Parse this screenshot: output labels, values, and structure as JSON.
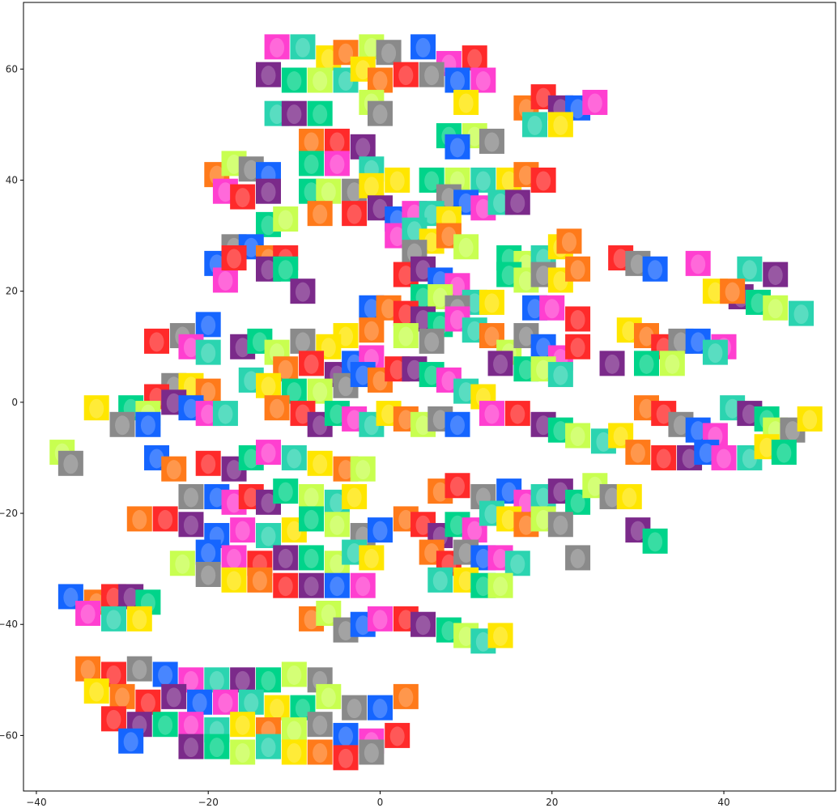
{
  "chart_data": {
    "type": "scatter",
    "title": "",
    "xlabel": "",
    "ylabel": "",
    "xlim": [
      -41.5,
      53
    ],
    "ylim": [
      -70,
      72
    ],
    "grid": false,
    "legend": "none",
    "marker": "face-thumbnail-image",
    "x_ticks": [
      -40,
      -20,
      0,
      20,
      40
    ],
    "y_ticks": [
      -60,
      -40,
      -20,
      0,
      20,
      40,
      60
    ],
    "tint_palette": [
      "#ff3fd0",
      "#ff7a1a",
      "#00d48a",
      "#1565ff",
      "#ffe600",
      "#7b2a8a",
      "#8a8a8a",
      "#2bd4b0",
      "#ff2a2a",
      "#c8ff50"
    ],
    "points": [
      [
        -12,
        64
      ],
      [
        -9,
        64
      ],
      [
        -6,
        62
      ],
      [
        -4,
        63
      ],
      [
        -1,
        64
      ],
      [
        1,
        63
      ],
      [
        5,
        64
      ],
      [
        8,
        61
      ],
      [
        11,
        62
      ],
      [
        -13,
        59
      ],
      [
        -10,
        58
      ],
      [
        -7,
        58
      ],
      [
        -4,
        58
      ],
      [
        -2,
        60
      ],
      [
        0,
        58
      ],
      [
        3,
        59
      ],
      [
        6,
        59
      ],
      [
        9,
        58
      ],
      [
        12,
        58
      ],
      [
        -12,
        52
      ],
      [
        -10,
        52
      ],
      [
        -7,
        52
      ],
      [
        -1,
        54
      ],
      [
        0,
        52
      ],
      [
        10,
        54
      ],
      [
        17,
        53
      ],
      [
        19,
        55
      ],
      [
        21,
        53
      ],
      [
        23,
        53
      ],
      [
        25,
        54
      ],
      [
        18,
        50
      ],
      [
        21,
        50
      ],
      [
        8,
        48
      ],
      [
        11,
        48
      ],
      [
        13,
        47
      ],
      [
        9,
        46
      ],
      [
        -8,
        47
      ],
      [
        -5,
        47
      ],
      [
        -2,
        46
      ],
      [
        -8,
        43
      ],
      [
        -5,
        43
      ],
      [
        -1,
        42
      ],
      [
        2,
        40
      ],
      [
        -19,
        41
      ],
      [
        -17,
        43
      ],
      [
        -15,
        42
      ],
      [
        -13,
        41
      ],
      [
        -18,
        38
      ],
      [
        -16,
        37
      ],
      [
        -13,
        38
      ],
      [
        6,
        40
      ],
      [
        9,
        40
      ],
      [
        12,
        40
      ],
      [
        15,
        40
      ],
      [
        17,
        41
      ],
      [
        19,
        40
      ],
      [
        8,
        37
      ],
      [
        10,
        36
      ],
      [
        12,
        35
      ],
      [
        14,
        36
      ],
      [
        16,
        36
      ],
      [
        -8,
        38
      ],
      [
        -6,
        38
      ],
      [
        -3,
        38
      ],
      [
        -1,
        39
      ],
      [
        -7,
        34
      ],
      [
        -3,
        34
      ],
      [
        0,
        35
      ],
      [
        2,
        33
      ],
      [
        4,
        34
      ],
      [
        6,
        34
      ],
      [
        8,
        33
      ],
      [
        -13,
        32
      ],
      [
        -11,
        33
      ],
      [
        -17,
        28
      ],
      [
        -15,
        28
      ],
      [
        -13,
        26
      ],
      [
        -11,
        26
      ],
      [
        -13,
        24
      ],
      [
        -11,
        24
      ],
      [
        2,
        30
      ],
      [
        4,
        31
      ],
      [
        6,
        29
      ],
      [
        8,
        30
      ],
      [
        10,
        28
      ],
      [
        4,
        27
      ],
      [
        -19,
        25
      ],
      [
        -18,
        22
      ],
      [
        -17,
        26
      ],
      [
        -9,
        20
      ],
      [
        15,
        26
      ],
      [
        17,
        25
      ],
      [
        19,
        26
      ],
      [
        21,
        28
      ],
      [
        22,
        29
      ],
      [
        28,
        26
      ],
      [
        30,
        25
      ],
      [
        32,
        24
      ],
      [
        37,
        25
      ],
      [
        43,
        24
      ],
      [
        46,
        23
      ],
      [
        15,
        23
      ],
      [
        17,
        22
      ],
      [
        19,
        23
      ],
      [
        21,
        22
      ],
      [
        23,
        24
      ],
      [
        3,
        23
      ],
      [
        5,
        24
      ],
      [
        7,
        22
      ],
      [
        9,
        21
      ],
      [
        11,
        18
      ],
      [
        13,
        18
      ],
      [
        5,
        19
      ],
      [
        7,
        19
      ],
      [
        9,
        17
      ],
      [
        -1,
        17
      ],
      [
        1,
        17
      ],
      [
        3,
        16
      ],
      [
        5,
        15
      ],
      [
        7,
        14
      ],
      [
        9,
        15
      ],
      [
        11,
        13
      ],
      [
        -4,
        12
      ],
      [
        -1,
        13
      ],
      [
        3,
        12
      ],
      [
        6,
        11
      ],
      [
        18,
        17
      ],
      [
        20,
        17
      ],
      [
        23,
        15
      ],
      [
        42,
        19
      ],
      [
        44,
        18
      ],
      [
        46,
        17
      ],
      [
        49,
        16
      ],
      [
        39,
        20
      ],
      [
        41,
        20
      ],
      [
        -26,
        11
      ],
      [
        -23,
        12
      ],
      [
        -20,
        14
      ],
      [
        -22,
        10
      ],
      [
        -20,
        9
      ],
      [
        -16,
        10
      ],
      [
        -14,
        11
      ],
      [
        -12,
        9
      ],
      [
        -9,
        11
      ],
      [
        -6,
        10
      ],
      [
        -11,
        6
      ],
      [
        -8,
        7
      ],
      [
        -5,
        5
      ],
      [
        -3,
        7
      ],
      [
        -1,
        8
      ],
      [
        -15,
        4
      ],
      [
        -13,
        3
      ],
      [
        -10,
        2
      ],
      [
        -7,
        2
      ],
      [
        -4,
        3
      ],
      [
        -2,
        5
      ],
      [
        0,
        4
      ],
      [
        2,
        6
      ],
      [
        4,
        6
      ],
      [
        6,
        5
      ],
      [
        8,
        4
      ],
      [
        10,
        2
      ],
      [
        12,
        1
      ],
      [
        13,
        12
      ],
      [
        15,
        9
      ],
      [
        17,
        12
      ],
      [
        19,
        10
      ],
      [
        21,
        8
      ],
      [
        23,
        10
      ],
      [
        14,
        7
      ],
      [
        17,
        6
      ],
      [
        19,
        6
      ],
      [
        21,
        5
      ],
      [
        29,
        13
      ],
      [
        31,
        12
      ],
      [
        33,
        10
      ],
      [
        35,
        11
      ],
      [
        37,
        11
      ],
      [
        40,
        10
      ],
      [
        39,
        9
      ],
      [
        27,
        7
      ],
      [
        31,
        7
      ],
      [
        34,
        7
      ],
      [
        -24,
        3
      ],
      [
        -22,
        3
      ],
      [
        -20,
        2
      ],
      [
        -26,
        1
      ],
      [
        -24,
        0
      ],
      [
        -22,
        -1
      ],
      [
        -20,
        -2
      ],
      [
        -18,
        -2
      ],
      [
        -33,
        -1
      ],
      [
        -29,
        -1
      ],
      [
        -27,
        -2
      ],
      [
        -30,
        -4
      ],
      [
        -27,
        -4
      ],
      [
        -12,
        -1
      ],
      [
        -9,
        -2
      ],
      [
        -7,
        -4
      ],
      [
        -5,
        -2
      ],
      [
        -3,
        -3
      ],
      [
        -1,
        -4
      ],
      [
        1,
        -2
      ],
      [
        3,
        -3
      ],
      [
        5,
        -4
      ],
      [
        7,
        -3
      ],
      [
        9,
        -4
      ],
      [
        13,
        -2
      ],
      [
        16,
        -2
      ],
      [
        19,
        -4
      ],
      [
        21,
        -5
      ],
      [
        23,
        -6
      ],
      [
        26,
        -7
      ],
      [
        28,
        -6
      ],
      [
        31,
        -1
      ],
      [
        33,
        -2
      ],
      [
        35,
        -4
      ],
      [
        37,
        -5
      ],
      [
        39,
        -6
      ],
      [
        41,
        -1
      ],
      [
        43,
        -2
      ],
      [
        45,
        -3
      ],
      [
        46,
        -5
      ],
      [
        48,
        -5
      ],
      [
        50,
        -3
      ],
      [
        30,
        -9
      ],
      [
        33,
        -10
      ],
      [
        36,
        -10
      ],
      [
        38,
        -9
      ],
      [
        40,
        -10
      ],
      [
        43,
        -10
      ],
      [
        45,
        -8
      ],
      [
        47,
        -9
      ],
      [
        -37,
        -9
      ],
      [
        -36,
        -11
      ],
      [
        -26,
        -10
      ],
      [
        -24,
        -12
      ],
      [
        -20,
        -11
      ],
      [
        -17,
        -12
      ],
      [
        -15,
        -10
      ],
      [
        -13,
        -9
      ],
      [
        -10,
        -10
      ],
      [
        -7,
        -11
      ],
      [
        -4,
        -12
      ],
      [
        -2,
        -12
      ],
      [
        -22,
        -17
      ],
      [
        -19,
        -17
      ],
      [
        -17,
        -18
      ],
      [
        -15,
        -17
      ],
      [
        -13,
        -18
      ],
      [
        -11,
        -16
      ],
      [
        -8,
        -17
      ],
      [
        -5,
        -18
      ],
      [
        -3,
        -17
      ],
      [
        7,
        -16
      ],
      [
        9,
        -15
      ],
      [
        12,
        -17
      ],
      [
        15,
        -16
      ],
      [
        17,
        -18
      ],
      [
        19,
        -17
      ],
      [
        21,
        -16
      ],
      [
        23,
        -18
      ],
      [
        25,
        -15
      ],
      [
        27,
        -17
      ],
      [
        29,
        -17
      ],
      [
        -28,
        -21
      ],
      [
        -25,
        -21
      ],
      [
        -22,
        -22
      ],
      [
        -19,
        -24
      ],
      [
        -16,
        -23
      ],
      [
        -13,
        -24
      ],
      [
        -10,
        -23
      ],
      [
        -8,
        -21
      ],
      [
        -5,
        -22
      ],
      [
        -2,
        -24
      ],
      [
        0,
        -23
      ],
      [
        3,
        -21
      ],
      [
        5,
        -22
      ],
      [
        7,
        -24
      ],
      [
        9,
        -22
      ],
      [
        11,
        -23
      ],
      [
        13,
        -20
      ],
      [
        15,
        -21
      ],
      [
        17,
        -22
      ],
      [
        19,
        -21
      ],
      [
        21,
        -22
      ],
      [
        -20,
        -27
      ],
      [
        -17,
        -28
      ],
      [
        -14,
        -29
      ],
      [
        -11,
        -28
      ],
      [
        -8,
        -28
      ],
      [
        -5,
        -29
      ],
      [
        -3,
        -27
      ],
      [
        -1,
        -28
      ],
      [
        6,
        -27
      ],
      [
        8,
        -29
      ],
      [
        10,
        -27
      ],
      [
        12,
        -28
      ],
      [
        14,
        -28
      ],
      [
        16,
        -29
      ],
      [
        30,
        -23
      ],
      [
        32,
        -25
      ],
      [
        -23,
        -29
      ],
      [
        -20,
        -31
      ],
      [
        -17,
        -32
      ],
      [
        -14,
        -32
      ],
      [
        -11,
        -33
      ],
      [
        -8,
        -33
      ],
      [
        -5,
        -33
      ],
      [
        -2,
        -33
      ],
      [
        7,
        -32
      ],
      [
        10,
        -32
      ],
      [
        12,
        -33
      ],
      [
        14,
        -33
      ],
      [
        23,
        -28
      ],
      [
        -36,
        -35
      ],
      [
        -33,
        -36
      ],
      [
        -31,
        -35
      ],
      [
        -29,
        -35
      ],
      [
        -27,
        -36
      ],
      [
        -34,
        -38
      ],
      [
        -31,
        -39
      ],
      [
        -28,
        -39
      ],
      [
        -8,
        -39
      ],
      [
        -6,
        -38
      ],
      [
        -4,
        -41
      ],
      [
        -2,
        -40
      ],
      [
        0,
        -39
      ],
      [
        3,
        -39
      ],
      [
        5,
        -40
      ],
      [
        8,
        -41
      ],
      [
        10,
        -42
      ],
      [
        12,
        -43
      ],
      [
        14,
        -42
      ],
      [
        -34,
        -48
      ],
      [
        -31,
        -49
      ],
      [
        -28,
        -48
      ],
      [
        -25,
        -49
      ],
      [
        -22,
        -50
      ],
      [
        -19,
        -50
      ],
      [
        -16,
        -50
      ],
      [
        -13,
        -50
      ],
      [
        -10,
        -49
      ],
      [
        -7,
        -50
      ],
      [
        -33,
        -52
      ],
      [
        -30,
        -53
      ],
      [
        -27,
        -54
      ],
      [
        -24,
        -53
      ],
      [
        -21,
        -54
      ],
      [
        -18,
        -54
      ],
      [
        -15,
        -54
      ],
      [
        -12,
        -55
      ],
      [
        -9,
        -55
      ],
      [
        -6,
        -53
      ],
      [
        -3,
        -55
      ],
      [
        0,
        -55
      ],
      [
        3,
        -53
      ],
      [
        -31,
        -57
      ],
      [
        -28,
        -58
      ],
      [
        -25,
        -58
      ],
      [
        -22,
        -58
      ],
      [
        -19,
        -59
      ],
      [
        -16,
        -58
      ],
      [
        -13,
        -59
      ],
      [
        -10,
        -59
      ],
      [
        -7,
        -58
      ],
      [
        -4,
        -60
      ],
      [
        -1,
        -61
      ],
      [
        2,
        -60
      ],
      [
        -22,
        -62
      ],
      [
        -19,
        -62
      ],
      [
        -16,
        -63
      ],
      [
        -13,
        -62
      ],
      [
        -10,
        -63
      ],
      [
        -7,
        -63
      ],
      [
        -4,
        -64
      ],
      [
        -1,
        -63
      ],
      [
        -29,
        -61
      ]
    ]
  }
}
